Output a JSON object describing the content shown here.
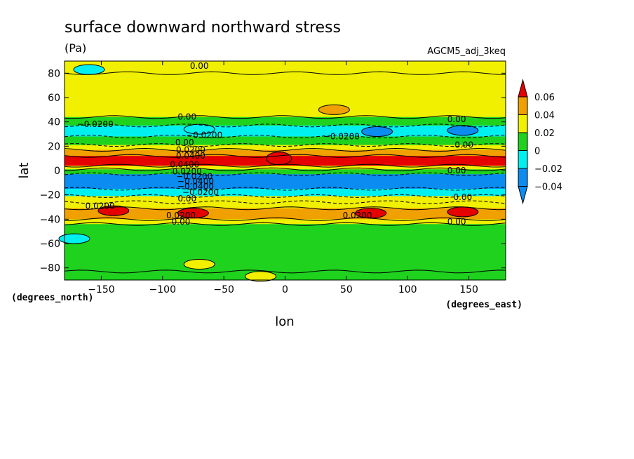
{
  "chart_data": {
    "type": "heatmap",
    "title": "surface downward northward stress",
    "units": "(Pa)",
    "dataset": "AGCM5_adj_3keq",
    "xlabel": "lon",
    "ylabel": "lat",
    "xunits": "(degrees_east)",
    "yunits": "(degrees_north)",
    "xlim": [
      -180,
      180
    ],
    "ylim": [
      -90,
      90
    ],
    "xticks": [
      -150,
      -100,
      -50,
      0,
      50,
      100,
      150
    ],
    "xtick_labels": [
      "−150",
      "−100",
      "−50",
      "0",
      "50",
      "100",
      "150"
    ],
    "yticks": [
      -80,
      -60,
      -40,
      -20,
      0,
      20,
      40,
      60,
      80
    ],
    "ytick_labels": [
      "−80",
      "−60",
      "−40",
      "−20",
      "0",
      "20",
      "40",
      "60",
      "80"
    ],
    "colorbar": {
      "levels": [
        -0.04,
        -0.02,
        0,
        0.02,
        0.04,
        0.06
      ],
      "labels": [
        "−0.04",
        "−0.02",
        "0",
        "0.02",
        "0.04",
        "0.06"
      ],
      "colors": [
        "#0a8cf0",
        "#00f0f0",
        "#1ed21e",
        "#f0f000",
        "#f0a000",
        "#e60000"
      ],
      "extend": "both"
    },
    "zonal_profile": [
      {
        "lat_min": 80,
        "lat_max": 90,
        "value": 0.005
      },
      {
        "lat_min": 44,
        "lat_max": 80,
        "value": 0.01
      },
      {
        "lat_min": 37,
        "lat_max": 44,
        "value": -0.01
      },
      {
        "lat_min": 28,
        "lat_max": 37,
        "value": -0.025
      },
      {
        "lat_min": 21,
        "lat_max": 28,
        "value": -0.01
      },
      {
        "lat_min": 17,
        "lat_max": 21,
        "value": 0.01
      },
      {
        "lat_min": 12,
        "lat_max": 17,
        "value": 0.025
      },
      {
        "lat_min": 4,
        "lat_max": 12,
        "value": 0.045
      },
      {
        "lat_min": 1,
        "lat_max": 4,
        "value": 0.01
      },
      {
        "lat_min": -3,
        "lat_max": 1,
        "value": -0.01
      },
      {
        "lat_min": -15,
        "lat_max": -3,
        "value": -0.045
      },
      {
        "lat_min": -21,
        "lat_max": -15,
        "value": -0.025
      },
      {
        "lat_min": -26,
        "lat_max": -21,
        "value": 0.005
      },
      {
        "lat_min": -31,
        "lat_max": -26,
        "value": 0.01
      },
      {
        "lat_min": -40,
        "lat_max": -31,
        "value": 0.03
      },
      {
        "lat_min": -44,
        "lat_max": -40,
        "value": 0.01
      },
      {
        "lat_min": -83,
        "lat_max": -44,
        "value": -0.01
      },
      {
        "lat_min": -90,
        "lat_max": -83,
        "value": -0.005
      }
    ],
    "features": [
      {
        "lon": -5,
        "lat": 10,
        "value": 0.065
      },
      {
        "lon": 75,
        "lat": 32,
        "value": -0.045
      },
      {
        "lon": 145,
        "lat": 33,
        "value": -0.045
      },
      {
        "lon": -70,
        "lat": 34,
        "value": -0.035
      },
      {
        "lon": -140,
        "lat": -33,
        "value": 0.045
      },
      {
        "lon": -75,
        "lat": -35,
        "value": 0.045
      },
      {
        "lon": 70,
        "lat": -35,
        "value": 0.045
      },
      {
        "lon": 145,
        "lat": -34,
        "value": 0.045
      },
      {
        "lon": 40,
        "lat": 50,
        "value": 0.025
      },
      {
        "lon": -160,
        "lat": 83,
        "value": -0.025
      },
      {
        "lon": -172,
        "lat": -56,
        "value": -0.025
      },
      {
        "lon": -70,
        "lat": -77,
        "value": 0.005
      },
      {
        "lon": -20,
        "lat": -87,
        "value": 0.005
      }
    ],
    "contour_labels": [
      {
        "lon": -70,
        "lat": 86,
        "text": "0.00"
      },
      {
        "lon": -155,
        "lat": 38,
        "text": "−0.0200"
      },
      {
        "lon": -80,
        "lat": 44,
        "text": "0.00"
      },
      {
        "lon": -66,
        "lat": 29,
        "text": "−0.0200"
      },
      {
        "lon": -82,
        "lat": 23,
        "text": "0.00"
      },
      {
        "lon": -77,
        "lat": 17,
        "text": "0.0200"
      },
      {
        "lon": -77,
        "lat": 12,
        "text": "0.0400"
      },
      {
        "lon": -82,
        "lat": 5,
        "text": "0.0400"
      },
      {
        "lon": -80,
        "lat": -1,
        "text": "0.0200"
      },
      {
        "lon": -74,
        "lat": -5,
        "text": "−0.0200"
      },
      {
        "lon": -73,
        "lat": -9,
        "text": "−0.0400"
      },
      {
        "lon": -73,
        "lat": -13,
        "text": "−0.0400"
      },
      {
        "lon": -69,
        "lat": -18,
        "text": "−0.0200"
      },
      {
        "lon": -80,
        "lat": -23,
        "text": "0.00"
      },
      {
        "lon": -151,
        "lat": -29,
        "text": "0.0200"
      },
      {
        "lon": -85,
        "lat": -37,
        "text": "0.0200"
      },
      {
        "lon": -85,
        "lat": -42,
        "text": "0.00"
      },
      {
        "lon": 46,
        "lat": 28,
        "text": "−0.0200"
      },
      {
        "lon": 140,
        "lat": 42,
        "text": "0.00"
      },
      {
        "lon": 146,
        "lat": 21,
        "text": "0.00"
      },
      {
        "lon": 140,
        "lat": 0,
        "text": "0.00"
      },
      {
        "lon": 145,
        "lat": -22,
        "text": "0.00"
      },
      {
        "lon": 59,
        "lat": -37,
        "text": "0.0200"
      },
      {
        "lon": 140,
        "lat": -42,
        "text": "0.00"
      }
    ]
  }
}
